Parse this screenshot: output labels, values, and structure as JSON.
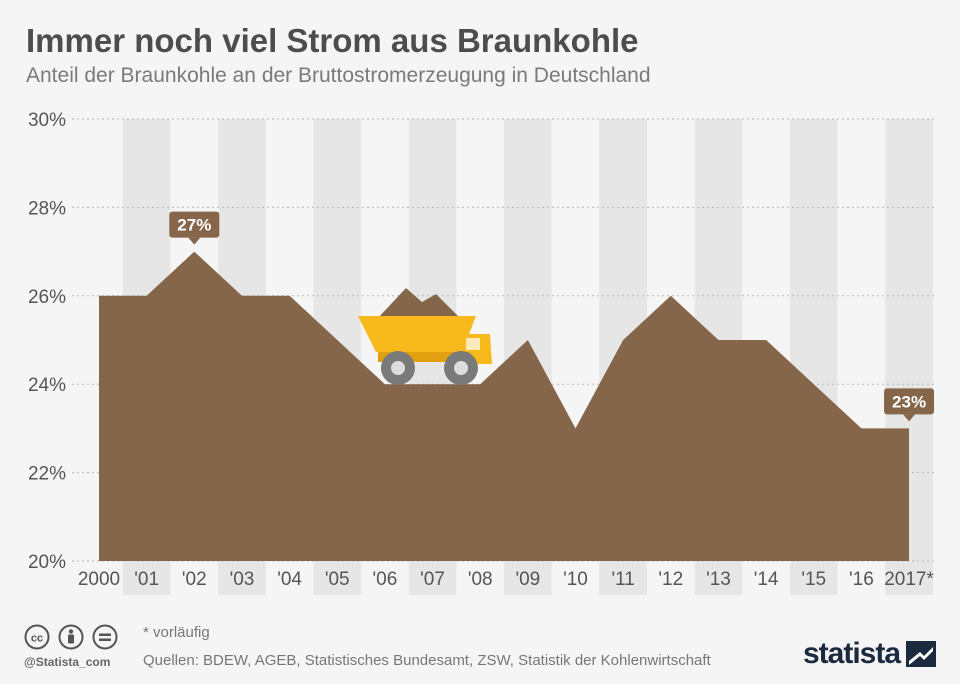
{
  "header": {
    "title": "Immer noch viel Strom aus Braunkohle",
    "subtitle": "Anteil der Braunkohle an der Bruttostromerzeugung in Deutschland"
  },
  "chart_data": {
    "type": "area",
    "title": "Immer noch viel Strom aus Braunkohle",
    "subtitle": "Anteil der Braunkohle an der Bruttostromerzeugung in Deutschland",
    "xlabel": "",
    "ylabel": "",
    "categories": [
      "2000",
      "'01",
      "'02",
      "'03",
      "'04",
      "'05",
      "'06",
      "'07",
      "'08",
      "'09",
      "'10",
      "'11",
      "'12",
      "'13",
      "'14",
      "'15",
      "'16",
      "2017*"
    ],
    "values": [
      26,
      26,
      27,
      26,
      26,
      25,
      24,
      24,
      24,
      25,
      23,
      25,
      26,
      25,
      25,
      24,
      23,
      23
    ],
    "unit": "%",
    "ylim": [
      20,
      30
    ],
    "yticks": [
      "20%",
      "22%",
      "24%",
      "26%",
      "28%",
      "30%"
    ],
    "grid": true,
    "annotations": [
      {
        "category": "'02",
        "label": "27%"
      },
      {
        "category": "2017*",
        "label": "23%"
      }
    ],
    "colors": {
      "area": "#86664a",
      "band": "#e6e6e6",
      "label_bg": "#86664a",
      "truck": "#f7b91b"
    }
  },
  "footer": {
    "note": "* vorläufig",
    "sources": "Quellen: BDEW, AGEB, Statistisches Bundesamt, ZSW, Statistik der Kohlenwirtschaft",
    "handle": "@Statista_com",
    "brand": "statista"
  },
  "icons": [
    "cc-icon",
    "by-icon",
    "nd-icon",
    "statista-logo-icon",
    "dump-truck-icon"
  ]
}
